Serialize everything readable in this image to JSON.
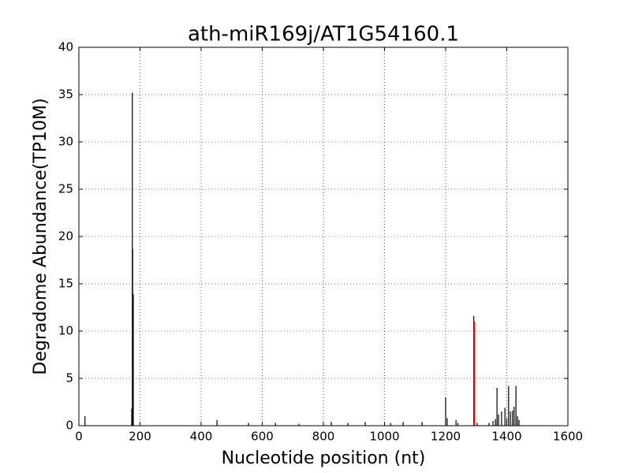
{
  "chart_data": {
    "type": "vlines",
    "title": "ath-miR169j/AT1G54160.1",
    "x_label": "Nucleotide position (nt)",
    "y_label": "Degradome Abundance(TP10M)",
    "xlim": [
      0,
      1600
    ],
    "xticks": [
      0,
      200,
      400,
      600,
      800,
      1000,
      1200,
      1400,
      1600
    ],
    "ylim": [
      0,
      40
    ],
    "yticks": [
      0,
      5,
      10,
      15,
      20,
      25,
      30,
      35,
      40
    ],
    "grid": true,
    "series": [
      {
        "color": "#000000",
        "x": [
          20,
          173,
          175,
          176,
          178,
          452,
          555,
          643,
          720,
          826,
          880,
          937,
          1020,
          1061,
          1123,
          1200,
          1205,
          1234,
          1240,
          1292,
          1303,
          1342,
          1355,
          1363,
          1368,
          1373,
          1383,
          1394,
          1400,
          1406,
          1412,
          1419,
          1424,
          1430,
          1435,
          1440
        ],
        "values": [
          1.0,
          1.8,
          35.2,
          18.7,
          13.9,
          0.6,
          0.3,
          0.3,
          0.2,
          0.4,
          0.3,
          0.4,
          0.3,
          0.4,
          0.4,
          3.0,
          0.8,
          0.6,
          0.3,
          11.6,
          0.3,
          0.3,
          0.5,
          0.7,
          4.0,
          1.2,
          1.5,
          1.9,
          0.8,
          4.2,
          1.5,
          1.6,
          2.0,
          4.2,
          1.0,
          0.6
        ]
      },
      {
        "color": "#ff0000",
        "x": [
          1294
        ],
        "values": [
          11.0
        ]
      }
    ]
  }
}
